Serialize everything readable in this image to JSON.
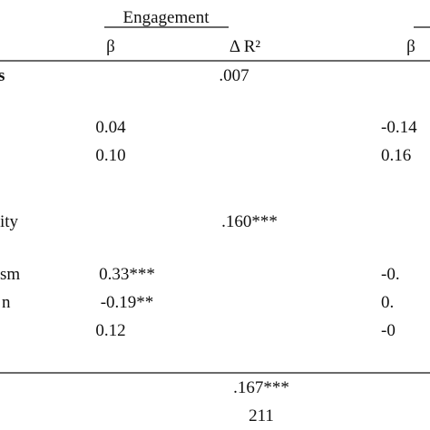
{
  "header": {
    "group": "Engagement",
    "columns": [
      "β",
      "Δ R²",
      "β"
    ]
  },
  "rows": [
    {
      "label": "s",
      "cells": [
        "",
        ".007",
        ""
      ]
    },
    {
      "label": "",
      "cells": [
        "0.04",
        "",
        "-0.14"
      ]
    },
    {
      "label": "",
      "cells": [
        "0.10",
        "",
        "0.16"
      ]
    },
    {
      "label": "ity",
      "cells": [
        "",
        ".160***",
        ""
      ]
    },
    {
      "label": "sm",
      "cells": [
        "0.33***",
        "",
        "-0."
      ]
    },
    {
      "label": "n",
      "cells": [
        "-0.19**",
        "",
        "0."
      ]
    },
    {
      "label": "",
      "cells": [
        "0.12",
        "",
        "-0"
      ]
    }
  ],
  "footer": [
    {
      "cells": [
        "",
        ".167***",
        ""
      ]
    },
    {
      "cells": [
        "",
        "211",
        ""
      ]
    }
  ]
}
